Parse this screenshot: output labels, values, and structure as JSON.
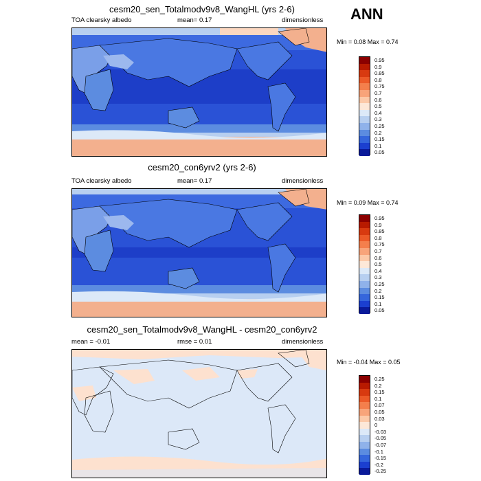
{
  "season": "ANN",
  "panels": [
    {
      "title": "cesm20_sen_Totalmodv9v8_WangHL (yrs 2-6)",
      "left": "TOA clearsky albedo",
      "middle": "mean=   0.17",
      "right": "dimensionless",
      "minmax": "Min =   0.08 Max =   0.74",
      "levels": [
        "0.95",
        "0.9",
        "0.85",
        "0.8",
        "0.75",
        "0.7",
        "0.6",
        "0.5",
        "0.4",
        "0.3",
        "0.25",
        "0.2",
        "0.15",
        "0.1",
        "0.05"
      ]
    },
    {
      "title": "cesm20_con6yrv2 (yrs 2-6)",
      "left": "TOA clearsky albedo",
      "middle": "mean=   0.17",
      "right": "dimensionless",
      "minmax": "Min =   0.09 Max =   0.74",
      "levels": [
        "0.95",
        "0.9",
        "0.85",
        "0.8",
        "0.75",
        "0.7",
        "0.6",
        "0.5",
        "0.4",
        "0.3",
        "0.25",
        "0.2",
        "0.15",
        "0.1",
        "0.05"
      ]
    },
    {
      "title": "cesm20_sen_Totalmodv9v8_WangHL - cesm20_con6yrv2",
      "left": "mean =  -0.01",
      "middle": "rmse =   0.01",
      "right": "dimensionless",
      "minmax": "Min =  -0.04 Max =   0.05",
      "levels": [
        "0.25",
        "0.2",
        "0.15",
        "0.1",
        "0.07",
        "0.05",
        "0.03",
        "0",
        "-0.03",
        "-0.05",
        "-0.07",
        "-0.1",
        "-0.15",
        "-0.2",
        "-0.25"
      ]
    }
  ],
  "colorbar_colors": [
    "#8b0000",
    "#b81a00",
    "#d83a10",
    "#ec5a28",
    "#f47f4c",
    "#f8a47a",
    "#fcc9a8",
    "#fde8d8",
    "#dce9f8",
    "#b7cff0",
    "#8fb2ea",
    "#5c8ce0",
    "#3566dc",
    "#1b3fd0",
    "#0a1a9a"
  ],
  "map_colors": {
    "ocean_tropics": "#1d3ec8",
    "ocean": "#2a52d6",
    "ocean_light": "#3d6ae0",
    "ice": "#f3b08e",
    "ice_light": "#fbd7c0",
    "land": "#4a78e2",
    "land_light": "#7a9fe8",
    "desert": "#9cb8ee",
    "pale": "#d6e5f8",
    "diff_bg": "#dce8f8",
    "diff_pos": "#fde1cf"
  }
}
